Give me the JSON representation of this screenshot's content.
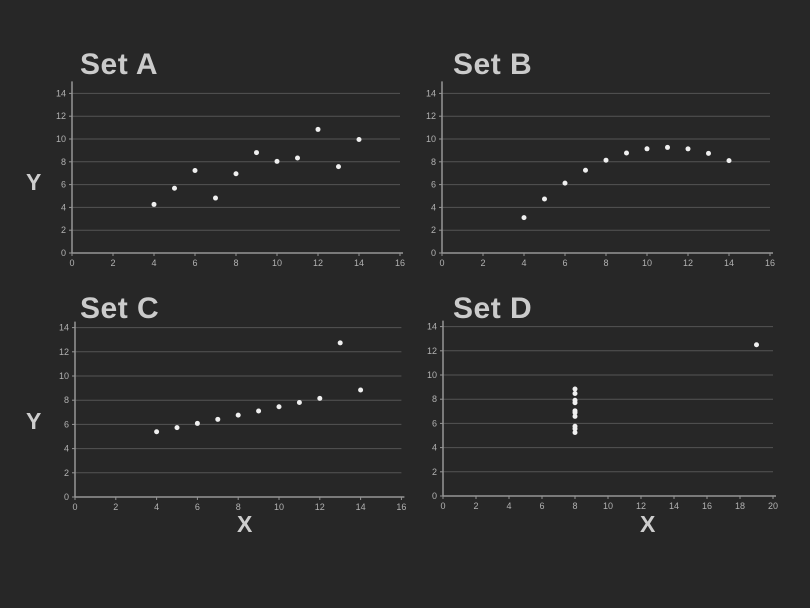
{
  "colors": {
    "background": "#272727",
    "gridline": "#555555",
    "axis_line": "#959595",
    "tick_label": "#b2b2b2",
    "point": "#efefef",
    "title": "#cbcbcb",
    "axis_label": "#cdcdcd"
  },
  "chart_data": [
    {
      "type": "scatter",
      "title": "Set A",
      "xlabel": "",
      "ylabel": "Y",
      "xlim": [
        0,
        16
      ],
      "ylim": [
        0,
        14
      ],
      "xticks": [
        0,
        2,
        4,
        6,
        8,
        10,
        12,
        14,
        16
      ],
      "yticks": [
        0,
        2,
        4,
        6,
        8,
        10,
        12,
        14
      ],
      "grid": "horizontal",
      "legend": "none",
      "x": [
        4,
        5,
        6,
        7,
        8,
        9,
        10,
        11,
        12,
        13,
        14
      ],
      "y": [
        4.26,
        5.68,
        7.24,
        4.82,
        6.95,
        8.81,
        8.04,
        8.33,
        10.84,
        7.58,
        9.96
      ]
    },
    {
      "type": "scatter",
      "title": "Set B",
      "xlabel": "",
      "ylabel": "",
      "xlim": [
        0,
        16
      ],
      "ylim": [
        0,
        14
      ],
      "xticks": [
        0,
        2,
        4,
        6,
        8,
        10,
        12,
        14,
        16
      ],
      "yticks": [
        0,
        2,
        4,
        6,
        8,
        10,
        12,
        14
      ],
      "grid": "horizontal",
      "legend": "none",
      "x": [
        4,
        5,
        6,
        7,
        8,
        9,
        10,
        11,
        12,
        13,
        14
      ],
      "y": [
        3.1,
        4.74,
        6.13,
        7.26,
        8.14,
        8.77,
        9.14,
        9.26,
        9.13,
        8.74,
        8.1
      ]
    },
    {
      "type": "scatter",
      "title": "Set C",
      "xlabel": "X",
      "ylabel": "Y",
      "xlim": [
        0,
        16
      ],
      "ylim": [
        0,
        14
      ],
      "xticks": [
        0,
        2,
        4,
        6,
        8,
        10,
        12,
        14,
        16
      ],
      "yticks": [
        0,
        2,
        4,
        6,
        8,
        10,
        12,
        14
      ],
      "grid": "horizontal",
      "legend": "none",
      "x": [
        4,
        5,
        6,
        7,
        8,
        9,
        10,
        11,
        12,
        13,
        14
      ],
      "y": [
        5.39,
        5.73,
        6.08,
        6.42,
        6.77,
        7.11,
        7.46,
        7.81,
        8.15,
        12.74,
        8.84
      ]
    },
    {
      "type": "scatter",
      "title": "Set D",
      "xlabel": "X",
      "ylabel": "",
      "xlim": [
        0,
        20
      ],
      "ylim": [
        0,
        14
      ],
      "xticks": [
        0,
        2,
        4,
        6,
        8,
        10,
        12,
        14,
        16,
        18,
        20
      ],
      "yticks": [
        0,
        2,
        4,
        6,
        8,
        10,
        12,
        14
      ],
      "grid": "horizontal",
      "legend": "none",
      "x": [
        8,
        8,
        8,
        8,
        8,
        8,
        8,
        8,
        8,
        8,
        19
      ],
      "y": [
        5.25,
        5.56,
        5.76,
        6.58,
        6.89,
        7.04,
        7.71,
        7.91,
        8.47,
        8.84,
        12.5
      ]
    }
  ]
}
